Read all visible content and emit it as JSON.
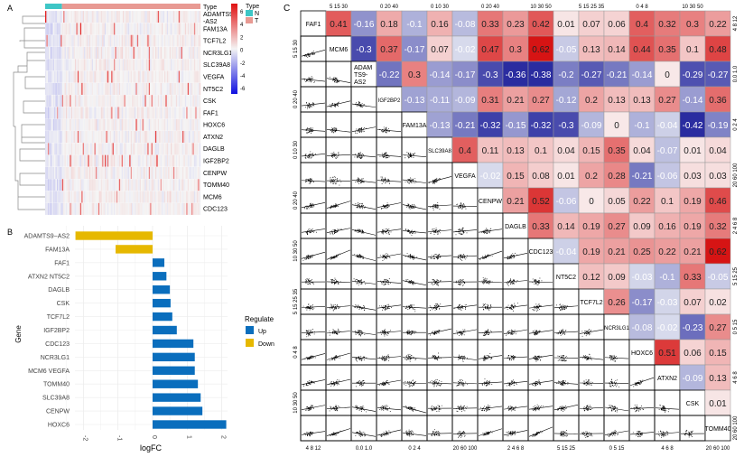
{
  "panels": {
    "a": "A",
    "b": "B",
    "c": "C"
  },
  "chart_data": [
    {
      "type": "heatmap",
      "panel": "A",
      "rows": [
        "ADAMTS9-AS2",
        "FAM13A",
        "TCF7L2",
        "NCR3LG1",
        "SLC39A8",
        "VEGFA",
        "NT5C2",
        "CSK",
        "FAF1",
        "HOXC6",
        "ATXN2",
        "DAGLB",
        "IGF2BP2",
        "CENPW",
        "TOMM40",
        "MCM6",
        "CDC123"
      ],
      "row_labels": [
        [
          "ADAMTS9",
          "-AS2"
        ],
        [
          "FAM13A"
        ],
        [
          "TCF7L2"
        ],
        [
          "NCR3LG1"
        ],
        [
          "SLC39A8"
        ],
        [
          "VEGFA"
        ],
        [
          "NT5C2"
        ],
        [
          "CSK"
        ],
        [
          "FAF1"
        ],
        [
          "HOXC6"
        ],
        [
          "ATXN2"
        ],
        [
          "DAGLB"
        ],
        [
          "IGF2BP2"
        ],
        [
          "CENPW"
        ],
        [
          "TOMM40"
        ],
        [
          "MCM6"
        ],
        [
          "CDC123"
        ]
      ],
      "annotation_label": "Type",
      "scale_ticks": [
        "6",
        "4",
        "2",
        "0",
        "-2",
        "-4",
        "-6"
      ],
      "scale_range": [
        -6,
        6
      ],
      "legend": {
        "title": "Type",
        "items": [
          {
            "label": "N",
            "color": "#3ec6c6"
          },
          {
            "label": "T",
            "color": "#e89a93"
          }
        ]
      },
      "normal_fraction": 0.11,
      "colors": {
        "low": "#1010e0",
        "mid": "#f4f4f4",
        "high": "#e01010"
      }
    },
    {
      "type": "bar",
      "panel": "B",
      "orientation": "horizontal",
      "categories": [
        "ADAMTS9−AS2",
        "FAM13A",
        "FAF1",
        "ATXN2 NT5C2",
        "DAGLB",
        "CSK",
        "TCF7L2",
        "IGF2BP2",
        "CDC123",
        "NCR3LG1",
        "MCM6 VEGFA",
        "TOMM40",
        "SLC39A8",
        "CENPW",
        "HOXC6"
      ],
      "values": [
        -2.23,
        -1.07,
        0.34,
        0.4,
        0.5,
        0.52,
        0.57,
        0.7,
        1.18,
        1.22,
        1.22,
        1.31,
        1.39,
        1.44,
        2.0
      ],
      "regulate": [
        "Down",
        "Down",
        "Up",
        "Up",
        "Up",
        "Up",
        "Up",
        "Up",
        "Up",
        "Up",
        "Up",
        "Up",
        "Up",
        "Up",
        "Up"
      ],
      "extra_value_last": 2.13,
      "xlabel": "logFC",
      "ylabel": "Gene",
      "xlim": [
        -2.4,
        2.25
      ],
      "xticks": [
        "-2",
        "-1",
        "0",
        "1",
        "2"
      ],
      "grid": true,
      "legend": {
        "title": "Regulate",
        "placement": "right",
        "items": [
          {
            "label": "Up",
            "color": "#0a6ebd"
          },
          {
            "label": "Down",
            "color": "#e6b800"
          }
        ]
      }
    },
    {
      "type": "heatmap",
      "panel": "C",
      "subtype": "correlation-pairs",
      "genes": [
        "FAF1",
        "MCM6",
        "ADAM\nTS9-\nAS2",
        "IGF2BP2",
        "FAM13A",
        "SLC39A8",
        "VEGFA",
        "CENPW",
        "DAGLB",
        "CDC123",
        "NT5C2",
        "TCF7L2",
        "NCR3LG1",
        "HOXC6",
        "ATXN2",
        "CSK",
        "TOMM40"
      ],
      "upper": [
        [
          0.41,
          -0.16,
          0.18,
          -0.1,
          0.16,
          -0.08,
          0.33,
          0.23,
          0.42,
          0.01,
          0.07,
          0.06,
          0.4,
          0.32,
          0.3,
          0.22
        ],
        [
          -0.3,
          0.37,
          -0.17,
          0.07,
          -0.02,
          0.47,
          0.3,
          0.62,
          -0.05,
          0.13,
          0.14,
          0.44,
          0.35,
          0.1,
          0.48
        ],
        [
          -0.22,
          0.3,
          -0.14,
          -0.17,
          -0.3,
          -0.36,
          -0.38,
          -0.2,
          -0.27,
          -0.21,
          -0.14,
          0,
          -0.29,
          -0.27
        ],
        [
          -0.13,
          -0.11,
          -0.09,
          0.31,
          0.21,
          0.27,
          -0.12,
          0.2,
          0.13,
          0.13,
          0.27,
          -0.14,
          0.36
        ],
        [
          -0.13,
          -0.21,
          -0.32,
          -0.15,
          -0.32,
          -0.3,
          -0.09,
          0,
          -0.1,
          -0.04,
          -0.42,
          -0.19
        ],
        [
          0.4,
          0.11,
          0.13,
          0.1,
          0.04,
          0.15,
          0.35,
          0.04,
          -0.07,
          0.01,
          0.04
        ],
        [
          -0.02,
          0.15,
          0.08,
          0.01,
          0.2,
          0.28,
          -0.21,
          -0.06,
          0.03,
          0.03
        ],
        [
          0.21,
          0.52,
          -0.06,
          0,
          0.05,
          0.22,
          0.1,
          0.19,
          0.46
        ],
        [
          0.33,
          0.14,
          0.19,
          0.27,
          0.09,
          0.16,
          0.19,
          0.32
        ],
        [
          -0.04,
          0.19,
          0.21,
          0.25,
          0.22,
          0.21,
          0.62
        ],
        [
          0.12,
          0.09,
          -0.03,
          -0.1,
          0.33,
          -0.05
        ],
        [
          0.26,
          -0.17,
          -0.03,
          0.07,
          0.02
        ],
        [
          -0.08,
          -0.02,
          -0.23,
          0.27
        ],
        [
          0.51,
          0.06,
          0.15
        ],
        [
          -0.09,
          0.13
        ],
        [
          0.01
        ]
      ],
      "axis_ticks": [
        "4 8 12",
        "5 15 30",
        "0.0 1.0",
        "0 20 40",
        "0 2 4",
        "0 10 30",
        "20 60 100",
        "0 20 40",
        "2 4 6 8",
        "10 30 50",
        "5 15 25",
        "5 15 25 35",
        "0 5 15",
        "0 4 8",
        "4 6 8",
        "10 30 50",
        "20 60 100"
      ]
    }
  ]
}
